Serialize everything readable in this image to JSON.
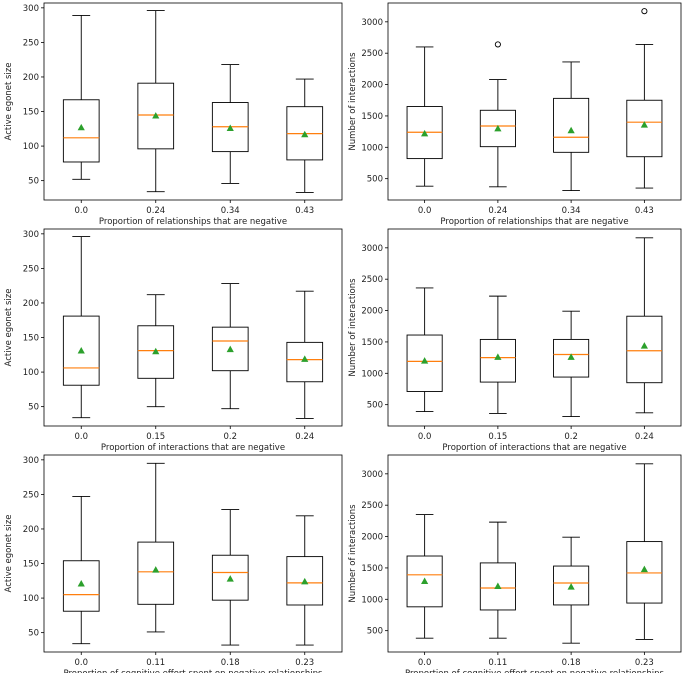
{
  "figure": {
    "title": ""
  },
  "chart_data": [
    {
      "type": "box",
      "xlabel": "Proportion of relationships that are negative",
      "ylabel": "Active egonet size",
      "categories": [
        "0.0",
        "0.24",
        "0.34",
        "0.43"
      ],
      "ylim": [
        22,
        307
      ],
      "yticks": [
        50,
        100,
        150,
        200,
        250,
        300
      ],
      "boxes": [
        {
          "whislo": 52,
          "q1": 77,
          "med": 112,
          "q3": 167,
          "whishi": 289,
          "mean": 127,
          "fliers": []
        },
        {
          "whislo": 34,
          "q1": 96,
          "med": 145,
          "q3": 191,
          "whishi": 296,
          "mean": 144,
          "fliers": []
        },
        {
          "whislo": 46,
          "q1": 92,
          "med": 128,
          "q3": 163,
          "whishi": 218,
          "mean": 126,
          "fliers": []
        },
        {
          "whislo": 33,
          "q1": 80,
          "med": 118,
          "q3": 157,
          "whishi": 197,
          "mean": 117,
          "fliers": []
        }
      ]
    },
    {
      "type": "box",
      "xlabel": "Proportion of relationships that are negative",
      "ylabel": "Number of interactions",
      "categories": [
        "0.0",
        "0.24",
        "0.34",
        "0.43"
      ],
      "ylim": [
        160,
        3300
      ],
      "yticks": [
        500,
        1000,
        1500,
        2000,
        2500,
        3000
      ],
      "boxes": [
        {
          "whislo": 380,
          "q1": 820,
          "med": 1240,
          "q3": 1650,
          "whishi": 2600,
          "mean": 1220,
          "fliers": []
        },
        {
          "whislo": 370,
          "q1": 1010,
          "med": 1340,
          "q3": 1590,
          "whishi": 2080,
          "mean": 1300,
          "fliers": [
            2640
          ]
        },
        {
          "whislo": 310,
          "q1": 920,
          "med": 1160,
          "q3": 1780,
          "whishi": 2360,
          "mean": 1270,
          "fliers": []
        },
        {
          "whislo": 350,
          "q1": 850,
          "med": 1400,
          "q3": 1750,
          "whishi": 2640,
          "mean": 1360,
          "fliers": [
            3170
          ]
        }
      ]
    },
    {
      "type": "box",
      "xlabel": "Proportion of interactions that are negative",
      "ylabel": "Active egonet size",
      "categories": [
        "0.0",
        "0.15",
        "0.2",
        "0.24"
      ],
      "ylim": [
        22,
        307
      ],
      "yticks": [
        50,
        100,
        150,
        200,
        250,
        300
      ],
      "boxes": [
        {
          "whislo": 34,
          "q1": 81,
          "med": 106,
          "q3": 181,
          "whishi": 296,
          "mean": 131,
          "fliers": []
        },
        {
          "whislo": 50,
          "q1": 91,
          "med": 131,
          "q3": 167,
          "whishi": 212,
          "mean": 130,
          "fliers": []
        },
        {
          "whislo": 47,
          "q1": 102,
          "med": 145,
          "q3": 165,
          "whishi": 228,
          "mean": 133,
          "fliers": []
        },
        {
          "whislo": 33,
          "q1": 86,
          "med": 118,
          "q3": 143,
          "whishi": 217,
          "mean": 119,
          "fliers": []
        }
      ]
    },
    {
      "type": "box",
      "xlabel": "Proportion of interactions that are negative",
      "ylabel": "Number of interactions",
      "categories": [
        "0.0",
        "0.15",
        "0.2",
        "0.24"
      ],
      "ylim": [
        160,
        3300
      ],
      "yticks": [
        500,
        1000,
        1500,
        2000,
        2500,
        3000
      ],
      "boxes": [
        {
          "whislo": 390,
          "q1": 710,
          "med": 1190,
          "q3": 1610,
          "whishi": 2360,
          "mean": 1200,
          "fliers": []
        },
        {
          "whislo": 360,
          "q1": 860,
          "med": 1250,
          "q3": 1540,
          "whishi": 2230,
          "mean": 1260,
          "fliers": []
        },
        {
          "whislo": 310,
          "q1": 940,
          "med": 1300,
          "q3": 1540,
          "whishi": 1990,
          "mean": 1260,
          "fliers": []
        },
        {
          "whislo": 370,
          "q1": 850,
          "med": 1360,
          "q3": 1910,
          "whishi": 3160,
          "mean": 1440,
          "fliers": []
        }
      ]
    },
    {
      "type": "box",
      "xlabel": "Proportion of cognitive effort spent on negative relationships",
      "ylabel": "Active egonet size",
      "categories": [
        "0.0",
        "0.11",
        "0.18",
        "0.23"
      ],
      "ylim": [
        22,
        307
      ],
      "yticks": [
        50,
        100,
        150,
        200,
        250,
        300
      ],
      "boxes": [
        {
          "whislo": 34,
          "q1": 81,
          "med": 105,
          "q3": 154,
          "whishi": 247,
          "mean": 121,
          "fliers": []
        },
        {
          "whislo": 51,
          "q1": 91,
          "med": 138,
          "q3": 181,
          "whishi": 295,
          "mean": 141,
          "fliers": []
        },
        {
          "whislo": 32,
          "q1": 97,
          "med": 137,
          "q3": 162,
          "whishi": 228,
          "mean": 128,
          "fliers": []
        },
        {
          "whislo": 32,
          "q1": 90,
          "med": 122,
          "q3": 160,
          "whishi": 219,
          "mean": 124,
          "fliers": []
        }
      ]
    },
    {
      "type": "box",
      "xlabel": "Proportion of cognitive effort spent on negative relationships",
      "ylabel": "Number of interactions",
      "categories": [
        "0.0",
        "0.11",
        "0.18",
        "0.23"
      ],
      "ylim": [
        160,
        3300
      ],
      "yticks": [
        500,
        1000,
        1500,
        2000,
        2500,
        3000
      ],
      "boxes": [
        {
          "whislo": 380,
          "q1": 880,
          "med": 1390,
          "q3": 1690,
          "whishi": 2350,
          "mean": 1290,
          "fliers": []
        },
        {
          "whislo": 380,
          "q1": 830,
          "med": 1180,
          "q3": 1580,
          "whishi": 2230,
          "mean": 1210,
          "fliers": []
        },
        {
          "whislo": 300,
          "q1": 910,
          "med": 1260,
          "q3": 1530,
          "whishi": 1990,
          "mean": 1200,
          "fliers": []
        },
        {
          "whislo": 360,
          "q1": 940,
          "med": 1420,
          "q3": 1920,
          "whishi": 3160,
          "mean": 1480,
          "fliers": []
        }
      ]
    }
  ],
  "colors": {
    "box": "#000000",
    "median": "#ff7f0e",
    "mean": "#2ca02c",
    "text": "#222222"
  }
}
